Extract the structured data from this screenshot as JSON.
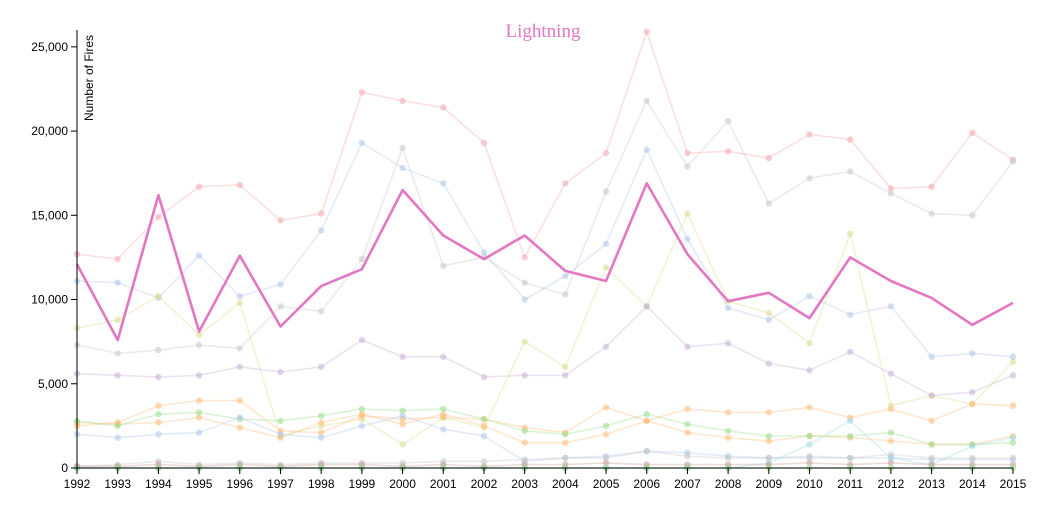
{
  "chart_data": {
    "type": "line",
    "title": "Lightning",
    "xlabel": "",
    "ylabel": "Number of Fires",
    "ylim": [
      0,
      26000
    ],
    "xlim": [
      1992,
      2015
    ],
    "yticks": [
      "0",
      "5,000",
      "10,000",
      "15,000",
      "20,000",
      "25,000"
    ],
    "xticks": [
      "1992",
      "1993",
      "1994",
      "1995",
      "1996",
      "1997",
      "1998",
      "1999",
      "2000",
      "2001",
      "2002",
      "2003",
      "2004",
      "2005",
      "2006",
      "2007",
      "2008",
      "2009",
      "2010",
      "2011",
      "2012",
      "2013",
      "2014",
      "2015"
    ],
    "x": [
      1992,
      1993,
      1994,
      1995,
      1996,
      1997,
      1998,
      1999,
      2000,
      2001,
      2002,
      2003,
      2004,
      2005,
      2006,
      2007,
      2008,
      2009,
      2010,
      2011,
      2012,
      2013,
      2014,
      2015
    ],
    "grid": false,
    "legend": "none",
    "highlight_index": 0,
    "series": [
      {
        "color": "#e377c2",
        "highlight": true,
        "values": [
          12100,
          7600,
          16200,
          8100,
          12600,
          8400,
          10800,
          11800,
          16500,
          13800,
          12400,
          13800,
          11700,
          11100,
          16900,
          12700,
          9900,
          10400,
          8900,
          12500,
          11100,
          10100,
          8500,
          9800
        ]
      },
      {
        "color": "#f4a6ad",
        "values": [
          12700,
          12400,
          14900,
          16700,
          16800,
          14700,
          15100,
          22300,
          21800,
          21400,
          19300,
          12500,
          16900,
          18700,
          25900,
          18700,
          18800,
          18400,
          19800,
          19500,
          16600,
          16700,
          19900,
          18300
        ]
      },
      {
        "color": "#c7c7c7",
        "values": [
          7300,
          6800,
          7000,
          7300,
          7100,
          9600,
          9300,
          12400,
          19000,
          12000,
          12500,
          11000,
          10300,
          16400,
          21800,
          17900,
          20600,
          15700,
          17200,
          17600,
          16300,
          15100,
          15000,
          18200
        ]
      },
      {
        "color": "#aec7e8",
        "values": [
          11100,
          11000,
          10100,
          12600,
          10200,
          10900,
          14100,
          19300,
          17800,
          16900,
          12800,
          10000,
          11400,
          13300,
          18900,
          13600,
          9500,
          8800,
          10200,
          9100,
          9600,
          6600,
          6800,
          6600
        ]
      },
      {
        "color": "#dbdb8d",
        "values": [
          8300,
          8800,
          10200,
          7900,
          9800,
          1900,
          2500,
          2900,
          1400,
          3000,
          2400,
          7500,
          6000,
          11900,
          9600,
          15100,
          9900,
          9200,
          7400,
          13900,
          3700,
          4300,
          3800,
          6300
        ]
      },
      {
        "color": "#c5b0d5",
        "values": [
          5600,
          5500,
          5400,
          5500,
          6000,
          5700,
          6000,
          7600,
          6600,
          6600,
          5400,
          5500,
          5500,
          7200,
          9600,
          7200,
          7400,
          6200,
          5800,
          6900,
          5600,
          4300,
          4500,
          5500
        ]
      },
      {
        "color": "#ffbb78",
        "values": [
          2500,
          2700,
          3700,
          4000,
          4000,
          2200,
          2100,
          3100,
          2900,
          3000,
          2900,
          2400,
          2100,
          3600,
          2800,
          3500,
          3300,
          3300,
          3600,
          3000,
          3500,
          2800,
          3800,
          3700
        ]
      },
      {
        "color": "#ffbb78",
        "values": [
          2700,
          2600,
          2700,
          3000,
          2400,
          1800,
          2700,
          3200,
          2600,
          3200,
          2500,
          1500,
          1500,
          2000,
          2800,
          2100,
          1800,
          1600,
          1900,
          1800,
          1600,
          1400,
          1400,
          1900
        ]
      },
      {
        "color": "#98df8a",
        "values": [
          2800,
          2500,
          3200,
          3300,
          2900,
          2800,
          3100,
          3500,
          3400,
          3500,
          2900,
          2200,
          2000,
          2500,
          3200,
          2600,
          2200,
          1900,
          1900,
          1900,
          2100,
          1400,
          1400,
          1500
        ]
      },
      {
        "color": "#aec7e8",
        "values": [
          2000,
          1800,
          2000,
          2100,
          3000,
          2000,
          1800,
          2500,
          3100,
          2300,
          1900,
          400,
          600,
          700,
          1000,
          900,
          700,
          600,
          600,
          600,
          600,
          500,
          500,
          500
        ]
      },
      {
        "color": "#c7c7c7",
        "values": [
          100,
          200,
          400,
          200,
          300,
          200,
          300,
          300,
          300,
          400,
          400,
          500,
          600,
          600,
          1000,
          700,
          600,
          600,
          700,
          600,
          800,
          600,
          600,
          600
        ]
      },
      {
        "color": "#9edae5",
        "values": [
          0,
          0,
          0,
          0,
          0,
          0,
          0,
          0,
          0,
          0,
          0,
          0,
          0,
          0,
          0,
          0,
          0,
          300,
          1400,
          2800,
          600,
          200,
          1300,
          1800
        ]
      },
      {
        "color": "#c49c94",
        "values": [
          100,
          100,
          200,
          100,
          200,
          100,
          200,
          200,
          100,
          200,
          100,
          200,
          200,
          300,
          200,
          200,
          200,
          200,
          300,
          200,
          300,
          200,
          200,
          200
        ]
      },
      {
        "color": "#98df8a",
        "values": [
          0,
          0,
          0,
          0,
          0,
          0,
          0,
          0,
          0,
          0,
          0,
          0,
          0,
          0,
          0,
          0,
          0,
          0,
          0,
          0,
          0,
          0,
          0,
          0
        ]
      }
    ]
  }
}
